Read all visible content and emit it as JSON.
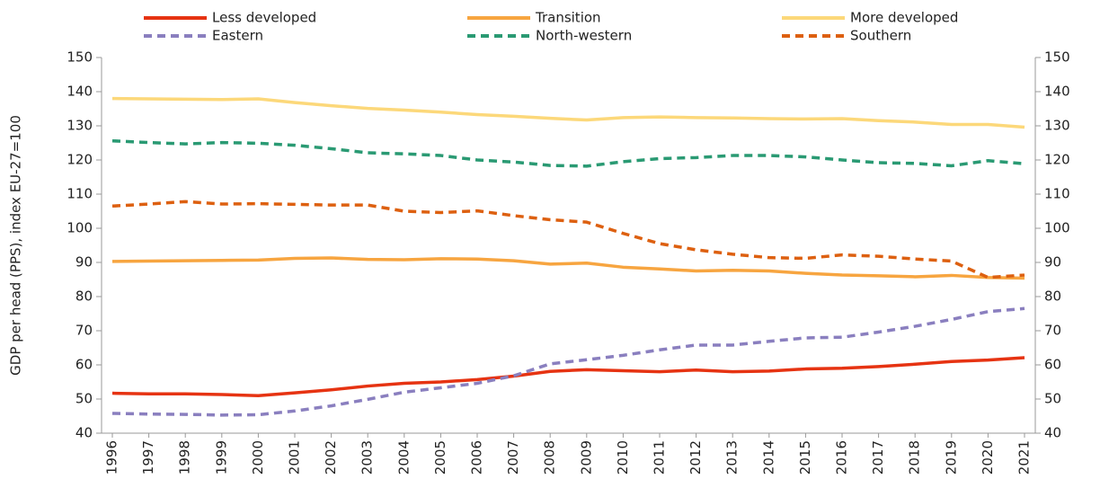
{
  "chart_data": {
    "type": "line",
    "y_label": "GDP per head (PPS), index EU-27=100",
    "categories": [
      "1996",
      "1997",
      "1998",
      "1999",
      "2000",
      "2001",
      "2002",
      "2003",
      "2004",
      "2005",
      "2006",
      "2007",
      "2008",
      "2009",
      "2010",
      "2011",
      "2012",
      "2013",
      "2014",
      "2015",
      "2016",
      "2017",
      "2018",
      "2019",
      "2020",
      "2021"
    ],
    "series": [
      {
        "name": "Less developed",
        "color": "#e63312",
        "style": "solid",
        "values": [
          51.7,
          51.5,
          51.5,
          51.3,
          51,
          51.8,
          52.7,
          53.8,
          54.6,
          55,
          55.7,
          56.7,
          58.1,
          58.6,
          58.3,
          58,
          58.5,
          58,
          58.2,
          58.8,
          59,
          59.5,
          60.2,
          61,
          61.4,
          62.1
        ]
      },
      {
        "name": "Transition",
        "color": "#f7a540",
        "style": "solid",
        "values": [
          90.3,
          90.4,
          90.5,
          90.6,
          90.7,
          91.2,
          91.3,
          90.9,
          90.8,
          91.1,
          91,
          90.5,
          89.5,
          89.8,
          88.6,
          88.1,
          87.5,
          87.7,
          87.5,
          86.8,
          86.3,
          86.1,
          85.8,
          86.2,
          85.6,
          85.4
        ]
      },
      {
        "name": "More developed",
        "color": "#fcd87a",
        "style": "solid",
        "values": [
          138,
          137.9,
          137.8,
          137.7,
          137.9,
          136.8,
          135.9,
          135.1,
          134.6,
          134,
          133.3,
          132.8,
          132.2,
          131.7,
          132.4,
          132.6,
          132.4,
          132.3,
          132.1,
          132,
          132.1,
          131.5,
          131.1,
          130.4,
          130.4,
          129.6
        ]
      },
      {
        "name": "Eastern",
        "color": "#8a7fbf",
        "style": "dashed",
        "values": [
          45.8,
          45.6,
          45.5,
          45.3,
          45.4,
          46.5,
          48,
          49.9,
          52,
          53.3,
          54.6,
          56.8,
          60.3,
          61.5,
          62.8,
          64.4,
          65.8,
          65.8,
          66.9,
          67.9,
          68.1,
          69.6,
          71.3,
          73.3,
          75.6,
          76.5
        ]
      },
      {
        "name": "North-western",
        "color": "#2a9a73",
        "style": "dashed",
        "values": [
          125.6,
          125.1,
          124.7,
          125.1,
          124.9,
          124.3,
          123.3,
          122.1,
          121.8,
          121.3,
          120,
          119.4,
          118.4,
          118.2,
          119.5,
          120.4,
          120.7,
          121.3,
          121.3,
          120.9,
          120,
          119.2,
          119,
          118.3,
          119.8,
          118.9
        ]
      },
      {
        "name": "Southern",
        "color": "#dd6010",
        "style": "dashed",
        "values": [
          106.5,
          107.1,
          107.8,
          107.1,
          107.2,
          107,
          106.8,
          106.8,
          105,
          104.6,
          105.1,
          103.7,
          102.5,
          101.8,
          98.5,
          95.5,
          93.7,
          92.4,
          91.4,
          91.2,
          92.2,
          91.8,
          91,
          90.4,
          85.6,
          86.3
        ]
      }
    ],
    "ylim": [
      40,
      150
    ],
    "yticks": [
      40,
      50,
      60,
      70,
      80,
      90,
      100,
      110,
      120,
      130,
      140,
      150
    ],
    "y2lim": [
      40,
      150
    ],
    "y2ticks": [
      40,
      50,
      60,
      70,
      80,
      90,
      100,
      110,
      120,
      130,
      140,
      150
    ],
    "grid": false,
    "legend": "top"
  }
}
